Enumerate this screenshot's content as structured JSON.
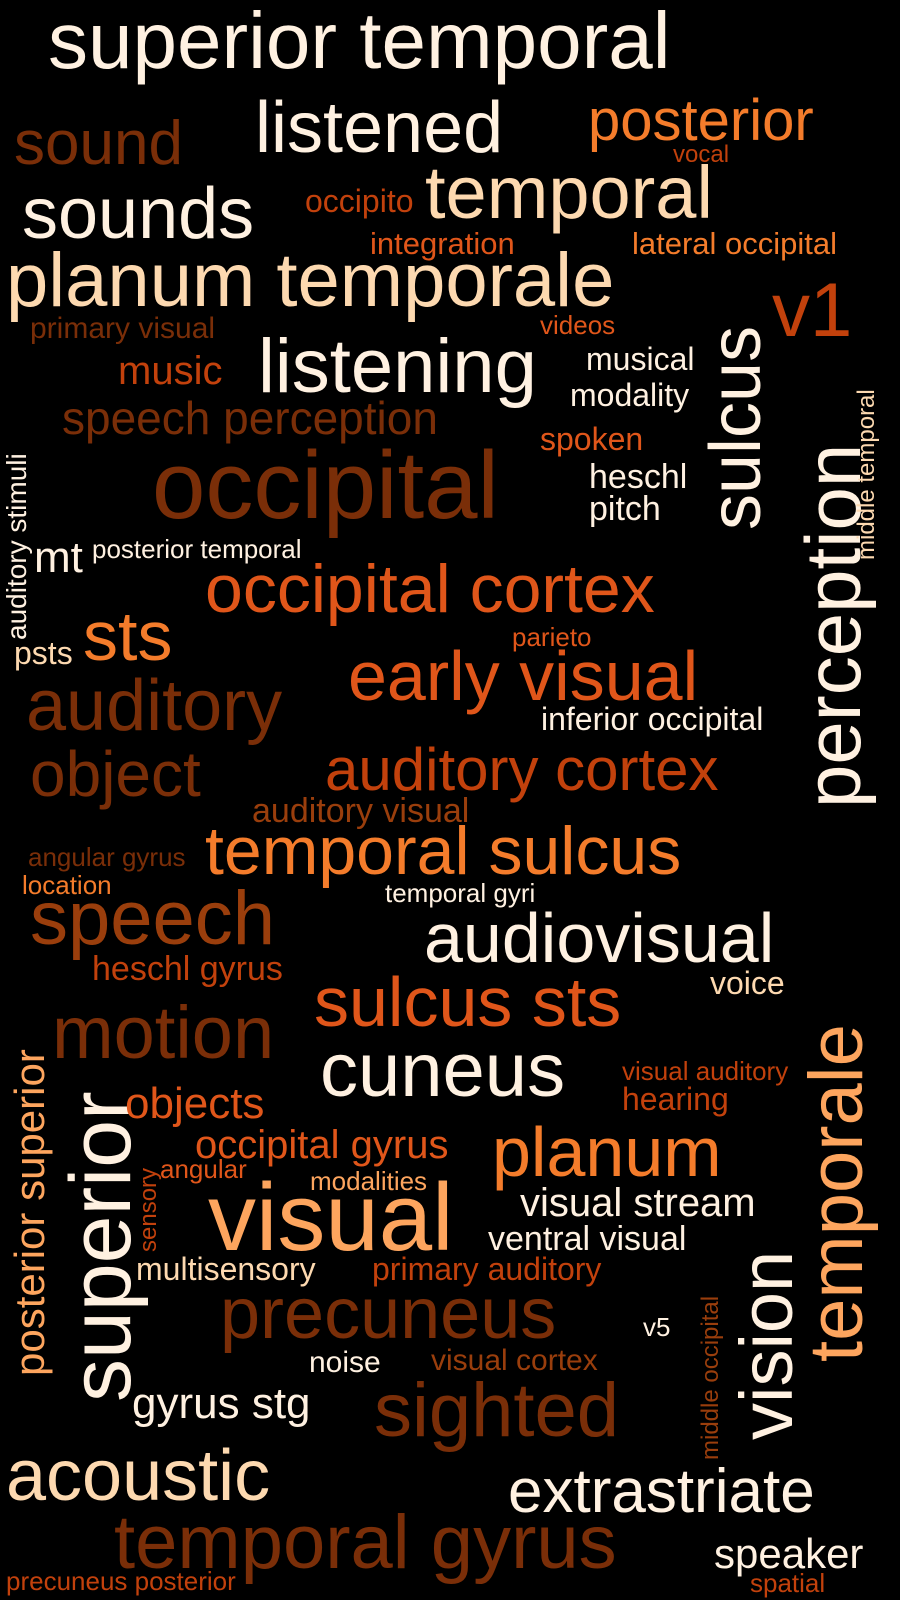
{
  "palette": {
    "background": "#000000",
    "cream": "#FFF1E1",
    "peach": "#FDD9B0",
    "light_orange": "#FDA55E",
    "orange": "#F47C2B",
    "dark_orange": "#E0561A",
    "burnt": "#C2410C",
    "rust": "#9A3E0C",
    "brown": "#7A2E08"
  },
  "words": [
    {
      "text": "superior temporal",
      "color": "#FFF1E1"
    },
    {
      "text": "listened",
      "color": "#FFF1E1"
    },
    {
      "text": "posterior",
      "color": "#F47C2B"
    },
    {
      "text": "sound",
      "color": "#7A2E08"
    },
    {
      "text": "vocal",
      "color": "#C2410C"
    },
    {
      "text": "sounds",
      "color": "#FFF1E1"
    },
    {
      "text": "occipito",
      "color": "#C2410C"
    },
    {
      "text": "temporal",
      "color": "#FDD9B0"
    },
    {
      "text": "integration",
      "color": "#E0561A"
    },
    {
      "text": "lateral occipital",
      "color": "#F47C2B"
    },
    {
      "text": "planum temporale",
      "color": "#FDD9B0"
    },
    {
      "text": "v1",
      "color": "#C2410C"
    },
    {
      "text": "primary visual",
      "color": "#7A2E08"
    },
    {
      "text": "videos",
      "color": "#E0561A"
    },
    {
      "text": "music",
      "color": "#C2410C"
    },
    {
      "text": "listening",
      "color": "#FFF1E1"
    },
    {
      "text": "musical",
      "color": "#FFF1E1"
    },
    {
      "text": "modality",
      "color": "#FFF1E1"
    },
    {
      "text": "sulcus",
      "color": "#FFF1E1"
    },
    {
      "text": "speech perception",
      "color": "#7A2E08"
    },
    {
      "text": "spoken",
      "color": "#E0561A"
    },
    {
      "text": "auditory stimuli",
      "color": "#FFF1E1"
    },
    {
      "text": "occipital",
      "color": "#7A2E08"
    },
    {
      "text": "heschl",
      "color": "#FFF1E1"
    },
    {
      "text": "pitch",
      "color": "#FFF1E1"
    },
    {
      "text": "perception",
      "color": "#FFF1E1"
    },
    {
      "text": "middle temporal",
      "color": "#FDD9B0"
    },
    {
      "text": "mt",
      "color": "#FFF1E1"
    },
    {
      "text": "posterior temporal",
      "color": "#FFF1E1"
    },
    {
      "text": "occipital cortex",
      "color": "#E0561A"
    },
    {
      "text": "sts",
      "color": "#F47C2B"
    },
    {
      "text": "parieto",
      "color": "#E0561A"
    },
    {
      "text": "psts",
      "color": "#FDD9B0"
    },
    {
      "text": "early visual",
      "color": "#E0561A"
    },
    {
      "text": "auditory",
      "color": "#7A2E08"
    },
    {
      "text": "inferior occipital",
      "color": "#FFF1E1"
    },
    {
      "text": "object",
      "color": "#7A2E08"
    },
    {
      "text": "auditory cortex",
      "color": "#C2410C"
    },
    {
      "text": "auditory visual",
      "color": "#9A3E0C"
    },
    {
      "text": "angular gyrus",
      "color": "#7A2E08"
    },
    {
      "text": "temporal sulcus",
      "color": "#F47C2B"
    },
    {
      "text": "location",
      "color": "#F47C2B"
    },
    {
      "text": "temporal gyri",
      "color": "#FFF1E1"
    },
    {
      "text": "speech",
      "color": "#9A3E0C"
    },
    {
      "text": "audiovisual",
      "color": "#FFF1E1"
    },
    {
      "text": "heschl gyrus",
      "color": "#C2410C"
    },
    {
      "text": "posterior superior",
      "color": "#FDA55E"
    },
    {
      "text": "sulcus sts",
      "color": "#E0561A"
    },
    {
      "text": "voice",
      "color": "#FDD9B0"
    },
    {
      "text": "motion",
      "color": "#7A2E08"
    },
    {
      "text": "temporale",
      "color": "#FDA55E"
    },
    {
      "text": "cuneus",
      "color": "#FFF1E1"
    },
    {
      "text": "superior",
      "color": "#FFF1E1"
    },
    {
      "text": "visual auditory",
      "color": "#C2410C"
    },
    {
      "text": "objects",
      "color": "#E0561A"
    },
    {
      "text": "hearing",
      "color": "#C2410C"
    },
    {
      "text": "occipital gyrus",
      "color": "#E0561A"
    },
    {
      "text": "planum",
      "color": "#F47C2B"
    },
    {
      "text": "angular",
      "color": "#E0561A"
    },
    {
      "text": "sensory",
      "color": "#C2410C"
    },
    {
      "text": "modalities",
      "color": "#FDA55E"
    },
    {
      "text": "visual",
      "color": "#FDA55E"
    },
    {
      "text": "visual stream",
      "color": "#FFF1E1"
    },
    {
      "text": "ventral visual",
      "color": "#FFF1E1"
    },
    {
      "text": "vision",
      "color": "#FFF1E1"
    },
    {
      "text": "multisensory",
      "color": "#FDD9B0"
    },
    {
      "text": "primary auditory",
      "color": "#C2410C"
    },
    {
      "text": "precuneus",
      "color": "#7A2E08"
    },
    {
      "text": "v5",
      "color": "#FFF1E1"
    },
    {
      "text": "middle occipital",
      "color": "#9A3E0C"
    },
    {
      "text": "noise",
      "color": "#FFF1E1"
    },
    {
      "text": "visual cortex",
      "color": "#9A3E0C"
    },
    {
      "text": "gyrus stg",
      "color": "#FFF1E1"
    },
    {
      "text": "sighted",
      "color": "#7A2E08"
    },
    {
      "text": "acoustic",
      "color": "#FDD9B0"
    },
    {
      "text": "extrastriate",
      "color": "#FFF1E1"
    },
    {
      "text": "temporal gyrus",
      "color": "#7A2E08"
    },
    {
      "text": "speaker",
      "color": "#FFF1E1"
    },
    {
      "text": "precuneus posterior",
      "color": "#C2410C"
    },
    {
      "text": "spatial",
      "color": "#C2410C"
    }
  ]
}
